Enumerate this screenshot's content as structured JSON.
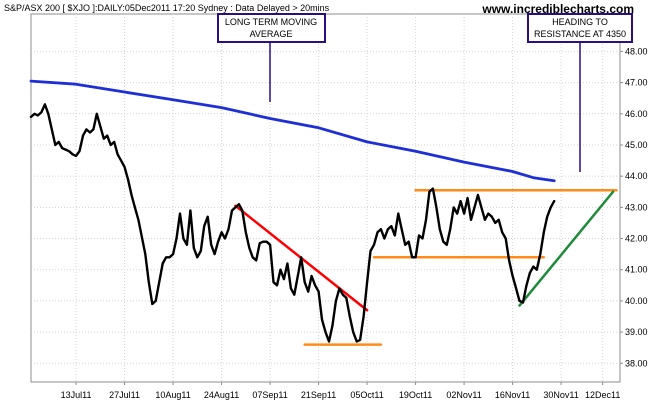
{
  "header": {
    "info": "S&P/ASX 200 [ $XJO ]:DAILY:05Dec2011 17:20 Sydney : Data Delayed > 20mins",
    "watermark": "www.incrediblecharts.com"
  },
  "callouts": {
    "ma": "LONG TERM MOVING AVERAGE",
    "ma_lines": [
      "LONG TERM MOVING",
      "AVERAGE"
    ],
    "target": "HEADING TO RESISTANCE AT 4350",
    "target_lines": [
      "HEADING TO",
      "RESISTANCE AT 4350"
    ]
  },
  "chart_data": {
    "type": "line",
    "title": "S&P/ASX 200 [ $XJO ]:DAILY:05Dec2011 17:20 Sydney : Data Delayed > 20mins",
    "xlabel": "",
    "ylabel": "",
    "y_axis_side": "right",
    "ylim": [
      37.4,
      49.2
    ],
    "y_ticks": [
      38.0,
      39.0,
      40.0,
      41.0,
      42.0,
      43.0,
      44.0,
      45.0,
      46.0,
      47.0,
      48.0
    ],
    "y_tick_labels": [
      "38.00",
      "39.00",
      "40.00",
      "41.00",
      "42.00",
      "43.00",
      "44.00",
      "45.00",
      "46.00",
      "47.00",
      "48.00"
    ],
    "x_range": [
      "2011-06-30",
      "2011-12-17"
    ],
    "x_ticks": [
      {
        "date": "2011-07-13",
        "label": "13Jul11"
      },
      {
        "date": "2011-07-27",
        "label": "27Jul11"
      },
      {
        "date": "2011-08-10",
        "label": "10Aug11"
      },
      {
        "date": "2011-08-24",
        "label": "24Aug11"
      },
      {
        "date": "2011-09-07",
        "label": "07Sep11"
      },
      {
        "date": "2011-09-21",
        "label": "21Sep11"
      },
      {
        "date": "2011-10-05",
        "label": "05Oct11"
      },
      {
        "date": "2011-10-19",
        "label": "19Oct11"
      },
      {
        "date": "2011-11-02",
        "label": "02Nov11"
      },
      {
        "date": "2011-11-16",
        "label": "16Nov11"
      },
      {
        "date": "2011-11-30",
        "label": "30Nov11"
      },
      {
        "date": "2011-12-12",
        "label": "12Dec11"
      }
    ],
    "grid": true,
    "series": [
      {
        "role": "price",
        "color": "#000000",
        "points": [
          [
            "2011-06-30",
            45.9
          ],
          [
            "2011-07-01",
            46.0
          ],
          [
            "2011-07-02",
            45.95
          ],
          [
            "2011-07-03",
            46.05
          ],
          [
            "2011-07-04",
            46.3
          ],
          [
            "2011-07-05",
            46.0
          ],
          [
            "2011-07-06",
            45.5
          ],
          [
            "2011-07-07",
            45.0
          ],
          [
            "2011-07-08",
            45.1
          ],
          [
            "2011-07-09",
            44.9
          ],
          [
            "2011-07-11",
            44.8
          ],
          [
            "2011-07-12",
            44.7
          ],
          [
            "2011-07-13",
            44.65
          ],
          [
            "2011-07-14",
            44.8
          ],
          [
            "2011-07-15",
            45.3
          ],
          [
            "2011-07-16",
            45.5
          ],
          [
            "2011-07-17",
            45.4
          ],
          [
            "2011-07-18",
            45.5
          ],
          [
            "2011-07-19",
            46.0
          ],
          [
            "2011-07-20",
            45.6
          ],
          [
            "2011-07-21",
            45.2
          ],
          [
            "2011-07-22",
            45.3
          ],
          [
            "2011-07-23",
            45.0
          ],
          [
            "2011-07-24",
            45.1
          ],
          [
            "2011-07-25",
            44.7
          ],
          [
            "2011-07-26",
            44.5
          ],
          [
            "2011-07-27",
            44.3
          ],
          [
            "2011-07-28",
            43.9
          ],
          [
            "2011-07-29",
            43.4
          ],
          [
            "2011-07-30",
            43.0
          ],
          [
            "2011-07-31",
            42.6
          ],
          [
            "2011-08-02",
            41.5
          ],
          [
            "2011-08-03",
            40.6
          ],
          [
            "2011-08-04",
            39.9
          ],
          [
            "2011-08-05",
            40.0
          ],
          [
            "2011-08-06",
            40.6
          ],
          [
            "2011-08-07",
            41.2
          ],
          [
            "2011-08-08",
            41.4
          ],
          [
            "2011-08-09",
            41.4
          ],
          [
            "2011-08-10",
            41.5
          ],
          [
            "2011-08-11",
            42.0
          ],
          [
            "2011-08-12",
            42.8
          ],
          [
            "2011-08-13",
            42.0
          ],
          [
            "2011-08-14",
            41.8
          ],
          [
            "2011-08-15",
            42.9
          ],
          [
            "2011-08-16",
            41.7
          ],
          [
            "2011-08-17",
            41.4
          ],
          [
            "2011-08-18",
            41.6
          ],
          [
            "2011-08-19",
            42.4
          ],
          [
            "2011-08-20",
            42.7
          ],
          [
            "2011-08-21",
            41.8
          ],
          [
            "2011-08-22",
            41.5
          ],
          [
            "2011-08-23",
            41.9
          ],
          [
            "2011-08-24",
            42.2
          ],
          [
            "2011-08-25",
            42.0
          ],
          [
            "2011-08-26",
            42.3
          ],
          [
            "2011-08-27",
            42.9
          ],
          [
            "2011-08-28",
            43.0
          ],
          [
            "2011-08-29",
            43.1
          ],
          [
            "2011-08-30",
            42.9
          ],
          [
            "2011-08-31",
            42.2
          ],
          [
            "2011-09-01",
            41.7
          ],
          [
            "2011-09-02",
            41.4
          ],
          [
            "2011-09-03",
            41.3
          ],
          [
            "2011-09-04",
            41.85
          ],
          [
            "2011-09-05",
            41.9
          ],
          [
            "2011-09-06",
            41.9
          ],
          [
            "2011-09-07",
            41.8
          ],
          [
            "2011-09-08",
            40.6
          ],
          [
            "2011-09-09",
            40.5
          ],
          [
            "2011-09-10",
            41.0
          ],
          [
            "2011-09-11",
            40.7
          ],
          [
            "2011-09-12",
            41.2
          ],
          [
            "2011-09-13",
            40.4
          ],
          [
            "2011-09-14",
            40.2
          ],
          [
            "2011-09-15",
            40.8
          ],
          [
            "2011-09-16",
            41.4
          ],
          [
            "2011-09-17",
            40.6
          ],
          [
            "2011-09-18",
            40.3
          ],
          [
            "2011-09-19",
            40.8
          ],
          [
            "2011-09-20",
            40.5
          ],
          [
            "2011-09-21",
            40.3
          ],
          [
            "2011-09-22",
            39.4
          ],
          [
            "2011-09-23",
            39.0
          ],
          [
            "2011-09-24",
            38.7
          ],
          [
            "2011-09-25",
            39.2
          ],
          [
            "2011-09-26",
            40.0
          ],
          [
            "2011-09-27",
            40.4
          ],
          [
            "2011-09-28",
            40.2
          ],
          [
            "2011-09-29",
            40.1
          ],
          [
            "2011-09-30",
            39.5
          ],
          [
            "2011-10-01",
            39.0
          ],
          [
            "2011-10-02",
            38.7
          ],
          [
            "2011-10-03",
            38.75
          ],
          [
            "2011-10-04",
            39.5
          ],
          [
            "2011-10-05",
            40.6
          ],
          [
            "2011-10-06",
            41.6
          ],
          [
            "2011-10-07",
            41.8
          ],
          [
            "2011-10-08",
            42.2
          ],
          [
            "2011-10-09",
            42.3
          ],
          [
            "2011-10-10",
            42.0
          ],
          [
            "2011-10-11",
            42.3
          ],
          [
            "2011-10-12",
            42.4
          ],
          [
            "2011-10-13",
            42.1
          ],
          [
            "2011-10-14",
            42.8
          ],
          [
            "2011-10-15",
            42.3
          ],
          [
            "2011-10-16",
            41.8
          ],
          [
            "2011-10-17",
            41.9
          ],
          [
            "2011-10-18",
            41.4
          ],
          [
            "2011-10-19",
            41.4
          ],
          [
            "2011-10-20",
            42.1
          ],
          [
            "2011-10-21",
            42.0
          ],
          [
            "2011-10-22",
            42.6
          ],
          [
            "2011-10-23",
            43.5
          ],
          [
            "2011-10-24",
            43.6
          ],
          [
            "2011-10-25",
            43.0
          ],
          [
            "2011-10-26",
            42.3
          ],
          [
            "2011-10-27",
            41.9
          ],
          [
            "2011-10-28",
            41.8
          ],
          [
            "2011-10-29",
            42.3
          ],
          [
            "2011-10-30",
            43.0
          ],
          [
            "2011-10-31",
            42.8
          ],
          [
            "2011-11-01",
            43.2
          ],
          [
            "2011-11-02",
            42.8
          ],
          [
            "2011-11-03",
            43.3
          ],
          [
            "2011-11-04",
            42.6
          ],
          [
            "2011-11-05",
            43.0
          ],
          [
            "2011-11-06",
            43.4
          ],
          [
            "2011-11-07",
            43.0
          ],
          [
            "2011-11-08",
            42.6
          ],
          [
            "2011-11-09",
            42.8
          ],
          [
            "2011-11-10",
            42.7
          ],
          [
            "2011-11-11",
            42.5
          ],
          [
            "2011-11-12",
            42.6
          ],
          [
            "2011-11-13",
            42.2
          ],
          [
            "2011-11-14",
            42.0
          ],
          [
            "2011-11-15",
            41.3
          ],
          [
            "2011-11-16",
            40.8
          ],
          [
            "2011-11-17",
            40.4
          ],
          [
            "2011-11-18",
            40.0
          ],
          [
            "2011-11-19",
            39.95
          ],
          [
            "2011-11-20",
            40.5
          ],
          [
            "2011-11-21",
            40.9
          ],
          [
            "2011-11-22",
            41.1
          ],
          [
            "2011-11-23",
            41.0
          ],
          [
            "2011-11-24",
            41.5
          ],
          [
            "2011-11-25",
            42.2
          ],
          [
            "2011-11-26",
            42.7
          ],
          [
            "2011-11-27",
            43.0
          ],
          [
            "2011-11-28",
            43.2
          ]
        ]
      },
      {
        "role": "long-term moving average",
        "color": "#1f2fd6",
        "points": [
          [
            "2011-06-30",
            47.05
          ],
          [
            "2011-07-13",
            46.95
          ],
          [
            "2011-07-27",
            46.7
          ],
          [
            "2011-08-10",
            46.45
          ],
          [
            "2011-08-24",
            46.2
          ],
          [
            "2011-09-07",
            45.85
          ],
          [
            "2011-09-21",
            45.55
          ],
          [
            "2011-10-05",
            45.1
          ],
          [
            "2011-10-19",
            44.8
          ],
          [
            "2011-11-02",
            44.45
          ],
          [
            "2011-11-16",
            44.15
          ],
          [
            "2011-11-22",
            43.95
          ],
          [
            "2011-11-28",
            43.85
          ]
        ]
      }
    ],
    "annotations": [
      {
        "type": "trendline",
        "color": "#ff0000",
        "from": [
          "2011-08-28",
          43.05
        ],
        "to": [
          "2011-10-05",
          39.7
        ]
      },
      {
        "type": "level",
        "color": "#ff8c1a",
        "from": [
          "2011-09-17",
          38.6
        ],
        "to": [
          "2011-10-09",
          38.6
        ]
      },
      {
        "type": "level",
        "color": "#ff8c1a",
        "from": [
          "2011-10-07",
          41.4
        ],
        "to": [
          "2011-11-25",
          41.4
        ]
      },
      {
        "type": "level",
        "color": "#ff8c1a",
        "from": [
          "2011-10-19",
          43.55
        ],
        "to": [
          "2011-12-16",
          43.55
        ]
      },
      {
        "type": "trendline",
        "color": "#1e8a3a",
        "from": [
          "2011-11-18",
          39.85
        ],
        "to": [
          "2011-12-15",
          43.5
        ]
      }
    ]
  }
}
